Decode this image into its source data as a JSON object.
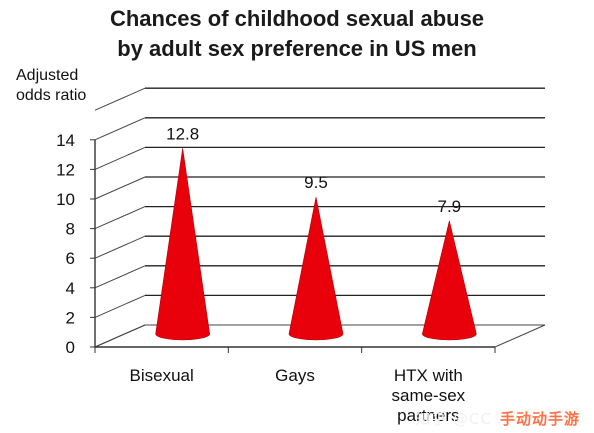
{
  "chart_data": {
    "type": "bar",
    "title": [
      "Chances of childhood sexual abuse",
      "by adult sex preference in US men"
    ],
    "ylabel": [
      "Adjusted",
      "odds ratio"
    ],
    "categories": [
      [
        "Bisexual"
      ],
      [
        "Gays"
      ],
      [
        "HTX with",
        "same-sex",
        "partners"
      ]
    ],
    "values": [
      12.8,
      9.5,
      7.9
    ],
    "value_labels": [
      "12.8",
      "9.5",
      "7.9"
    ],
    "yticks": [
      "0",
      "2",
      "4",
      "6",
      "8",
      "10",
      "12",
      "14"
    ],
    "ylim": [
      0,
      16
    ],
    "grid": true,
    "bar_shape": "cone",
    "bar_color": "#e8000b"
  },
  "watermark": {
    "text_a": "知乎 @CC",
    "text_b": "手动动手游"
  }
}
